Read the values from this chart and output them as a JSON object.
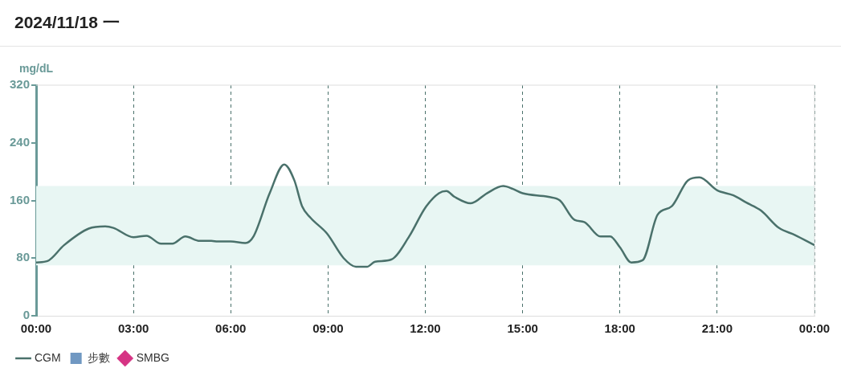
{
  "chart_data": {
    "type": "line",
    "title": "2024/11/18 一",
    "ylabel": "mg/dL",
    "xlim": [
      0,
      24
    ],
    "xticks": [
      {
        "value": 0,
        "label": "00:00"
      },
      {
        "value": 3,
        "label": "03:00"
      },
      {
        "value": 6,
        "label": "06:00"
      },
      {
        "value": 9,
        "label": "09:00"
      },
      {
        "value": 12,
        "label": "12:00"
      },
      {
        "value": 15,
        "label": "15:00"
      },
      {
        "value": 18,
        "label": "18:00"
      },
      {
        "value": 21,
        "label": "21:00"
      },
      {
        "value": 24,
        "label": "00:00"
      }
    ],
    "ylim": [
      0,
      320
    ],
    "yticks": [
      0,
      80,
      160,
      240,
      320
    ],
    "grid": "x",
    "legend": "bottom left",
    "bands": [
      {
        "axis": "y",
        "from": 70,
        "to": 180,
        "color": "#e8f6f3"
      }
    ],
    "series": [
      {
        "name": "CGM",
        "color": "#4a716b",
        "marker": "none",
        "line_style": "solid",
        "x": [
          0,
          0.35,
          0.86,
          1.62,
          2.13,
          2.38,
          3.0,
          3.4,
          3.85,
          4.2,
          4.6,
          5.04,
          5.4,
          5.6,
          6.0,
          6.45,
          6.7,
          7.2,
          7.65,
          7.96,
          8.2,
          8.46,
          8.97,
          9.48,
          9.86,
          10.2,
          10.45,
          10.95,
          11.5,
          12.0,
          12.42,
          12.65,
          12.9,
          13.4,
          13.9,
          14.4,
          14.7,
          15.0,
          15.8,
          16.15,
          16.6,
          16.9,
          17.4,
          17.7,
          18.0,
          18.35,
          18.7,
          19.16,
          19.6,
          20.1,
          20.45,
          21.0,
          21.5,
          21.9,
          22.35,
          22.9,
          23.4,
          24
        ],
        "values": [
          74,
          76,
          98,
          121,
          124,
          122,
          109,
          111,
          100,
          100,
          110,
          104,
          104,
          103,
          103,
          101,
          110,
          170,
          210,
          188,
          152,
          136,
          114,
          80,
          68,
          68,
          75,
          78,
          110,
          150,
          170,
          173,
          165,
          156,
          170,
          180,
          176,
          170,
          165,
          160,
          133,
          130,
          110,
          110,
          95,
          74,
          77,
          140,
          152,
          188,
          192,
          174,
          167,
          157,
          146,
          122,
          112,
          98
        ]
      },
      {
        "name": "步數",
        "type": "bar",
        "color": "#7098c2"
      },
      {
        "name": "SMBG",
        "type": "scatter",
        "color": "#d63384",
        "marker": "diamond"
      }
    ]
  }
}
